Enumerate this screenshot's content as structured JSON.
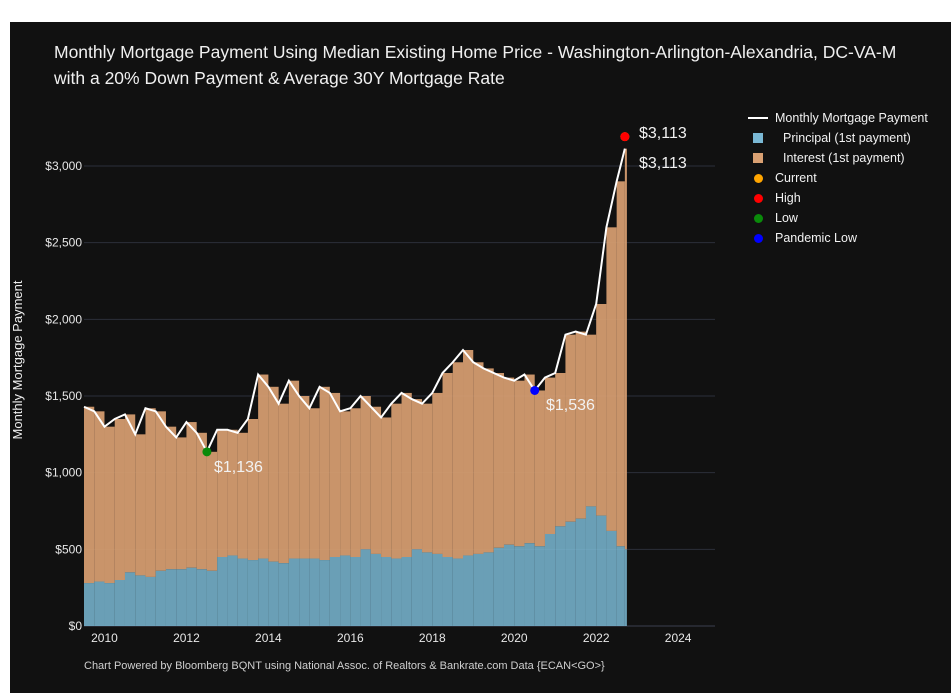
{
  "chart_data": {
    "type": "bar+line",
    "title": "Monthly Mortgage Payment Using Median Existing Home Price - Washington-Arlington-Alexandria, DC-VA-M",
    "subtitle": "with a 20% Down Payment & Average 30Y Mortgage Rate",
    "ylabel": "Monthly Mortgage Payment",
    "xlabel": "",
    "xlim": [
      2009.5,
      2024.9
    ],
    "ylim": [
      0,
      3300
    ],
    "x_ticks": [
      "2010",
      "2012",
      "2014",
      "2016",
      "2018",
      "2020",
      "2022",
      "2024"
    ],
    "y_ticks": [
      "$0",
      "$500",
      "$1,000",
      "$1,500",
      "$2,000",
      "$2,500",
      "$3,000"
    ],
    "grid": "horizontal",
    "legend_position": "top-right",
    "x": [
      2009.5,
      2009.75,
      2010.0,
      2010.25,
      2010.5,
      2010.75,
      2011.0,
      2011.25,
      2011.5,
      2011.75,
      2012.0,
      2012.25,
      2012.5,
      2012.75,
      2013.0,
      2013.25,
      2013.5,
      2013.75,
      2014.0,
      2014.25,
      2014.5,
      2014.75,
      2015.0,
      2015.25,
      2015.5,
      2015.75,
      2016.0,
      2016.25,
      2016.5,
      2016.75,
      2017.0,
      2017.25,
      2017.5,
      2017.75,
      2018.0,
      2018.25,
      2018.5,
      2018.75,
      2019.0,
      2019.25,
      2019.5,
      2019.75,
      2020.0,
      2020.25,
      2020.5,
      2020.75,
      2021.0,
      2021.25,
      2021.5,
      2021.75,
      2022.0,
      2022.25,
      2022.5,
      2022.7
    ],
    "series": [
      {
        "name": "Monthly Mortgage Payment",
        "type": "line",
        "color": "#ffffff",
        "values": [
          1430,
          1400,
          1300,
          1350,
          1380,
          1250,
          1420,
          1400,
          1300,
          1230,
          1330,
          1260,
          1136,
          1280,
          1280,
          1260,
          1350,
          1640,
          1560,
          1450,
          1600,
          1500,
          1420,
          1560,
          1520,
          1400,
          1420,
          1500,
          1430,
          1360,
          1450,
          1520,
          1480,
          1450,
          1520,
          1650,
          1720,
          1800,
          1720,
          1680,
          1650,
          1620,
          1600,
          1640,
          1536,
          1620,
          1650,
          1900,
          1920,
          1900,
          2100,
          2600,
          2900,
          3113
        ]
      },
      {
        "name": "Principal (1st payment)",
        "type": "bar",
        "color": "#7ab8d4",
        "values": [
          280,
          290,
          280,
          300,
          350,
          330,
          320,
          360,
          370,
          370,
          380,
          370,
          360,
          450,
          460,
          440,
          430,
          440,
          420,
          410,
          440,
          440,
          440,
          430,
          450,
          460,
          450,
          500,
          470,
          450,
          440,
          450,
          500,
          480,
          470,
          450,
          440,
          460,
          470,
          480,
          510,
          530,
          520,
          540,
          520,
          600,
          650,
          680,
          700,
          780,
          720,
          620,
          520,
          500
        ]
      },
      {
        "name": "Interest (1st payment)",
        "type": "bar",
        "color": "#d9a072"
      }
    ],
    "markers": [
      {
        "name": "Current",
        "color": "#ffa500",
        "x": 2022.7,
        "y": 3113
      },
      {
        "name": "High",
        "color": "#ff0000",
        "x": 2022.7,
        "y": 3113,
        "label": "$3,113"
      },
      {
        "name": "Low",
        "color": "#0a8a0a",
        "x": 2012.5,
        "y": 1136,
        "label": "$1,136"
      },
      {
        "name": "Pandemic Low",
        "color": "#0000ff",
        "x": 2020.5,
        "y": 1536,
        "label": "$1,536"
      }
    ],
    "end_label": "$3,113",
    "footer": "Chart Powered by Bloomberg BQNT using National Assoc. of Realtors & Bankrate.com Data   {ECAN<GO>}"
  }
}
